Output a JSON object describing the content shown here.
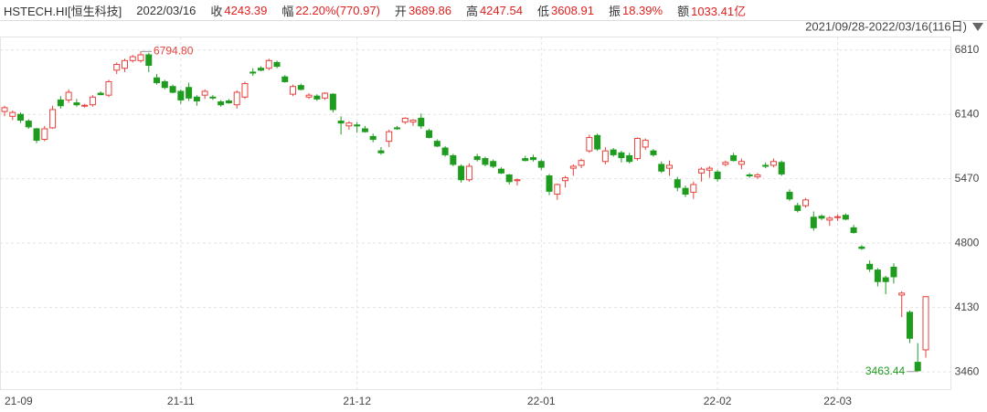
{
  "header": {
    "symbol": "HSTECH.HI[恒生科技]",
    "date": "2022/03/16",
    "fields": [
      {
        "label": "收",
        "value": "4243.39"
      },
      {
        "label": "幅",
        "value": "22.20%(770.97)"
      },
      {
        "label": "开",
        "value": "3689.86"
      },
      {
        "label": "高",
        "value": "4247.54"
      },
      {
        "label": "低",
        "value": "3608.91"
      },
      {
        "label": "振",
        "value": "18.39%"
      },
      {
        "label": "额",
        "value": "1033.41亿"
      }
    ],
    "range": "2021/09/28-2022/03/16(116日)"
  },
  "chart_data": {
    "type": "candlestick",
    "categories": [
      "21-09",
      null,
      null,
      null,
      null,
      null,
      null,
      null,
      null,
      null,
      null,
      null,
      null,
      null,
      null,
      null,
      null,
      null,
      null,
      null,
      null,
      null,
      "21-11",
      null,
      null,
      null,
      null,
      null,
      null,
      null,
      null,
      null,
      null,
      null,
      null,
      null,
      null,
      null,
      null,
      null,
      null,
      null,
      null,
      null,
      "21-12",
      null,
      null,
      null,
      null,
      null,
      null,
      null,
      null,
      null,
      null,
      null,
      null,
      null,
      null,
      null,
      null,
      null,
      null,
      null,
      null,
      null,
      null,
      "22-01",
      null,
      null,
      null,
      null,
      null,
      null,
      null,
      null,
      null,
      null,
      null,
      null,
      null,
      null,
      null,
      null,
      null,
      null,
      null,
      null,
      null,
      "22-02",
      null,
      null,
      null,
      null,
      null,
      null,
      null,
      null,
      null,
      null,
      null,
      null,
      null,
      null,
      "22-03",
      null,
      null,
      null,
      null,
      null,
      null,
      null,
      null,
      null,
      null,
      null
    ],
    "open": [
      6170,
      6120,
      6140,
      6070,
      5990,
      5880,
      6000,
      6290,
      6290,
      6260,
      6230,
      6240,
      6360,
      6340,
      6600,
      6620,
      6700,
      6700,
      6760,
      6520,
      6480,
      6430,
      6380,
      6420,
      6320,
      6340,
      6320,
      6270,
      6280,
      6240,
      6320,
      6580,
      6620,
      6620,
      6680,
      6530,
      6350,
      6440,
      6320,
      6330,
      6310,
      6350,
      6070,
      6020,
      6030,
      5990,
      5910,
      5760,
      5860,
      6000,
      6060,
      6060,
      6100,
      5970,
      5860,
      5790,
      5710,
      5600,
      5460,
      5700,
      5680,
      5650,
      5570,
      5510,
      5450,
      5680,
      5690,
      5650,
      5500,
      5310,
      5450,
      5580,
      5610,
      5760,
      5920,
      5650,
      5770,
      5740,
      5710,
      5680,
      5800,
      5760,
      5620,
      5580,
      5460,
      5370,
      5330,
      5530,
      5560,
      5540,
      5620,
      5710,
      5620,
      5510,
      5490,
      5610,
      5610,
      5640,
      5330,
      5190,
      5190,
      5070,
      5080,
      5040,
      5070,
      5090,
      4960,
      4760,
      4580,
      4520,
      4440,
      4550,
      4260,
      4080,
      3560,
      3689.86
    ],
    "high": [
      6230,
      6180,
      6160,
      6090,
      6000,
      6020,
      6230,
      6330,
      6400,
      6300,
      6250,
      6340,
      6380,
      6500,
      6680,
      6720,
      6760,
      6794.8,
      6780,
      6560,
      6500,
      6450,
      6400,
      6470,
      6340,
      6400,
      6340,
      6290,
      6300,
      6390,
      6480,
      6620,
      6640,
      6720,
      6700,
      6550,
      6450,
      6460,
      6360,
      6350,
      6370,
      6360,
      6120,
      6070,
      6060,
      6020,
      5940,
      5800,
      5980,
      6020,
      6110,
      6090,
      6150,
      5990,
      5880,
      5810,
      5730,
      5620,
      5630,
      5730,
      5700,
      5670,
      5590,
      5520,
      5470,
      5710,
      5720,
      5670,
      5520,
      5420,
      5500,
      5620,
      5680,
      5930,
      5940,
      5800,
      5790,
      5760,
      5740,
      5900,
      5890,
      5780,
      5650,
      5660,
      5490,
      5400,
      5440,
      5590,
      5600,
      5560,
      5660,
      5740,
      5680,
      5530,
      5530,
      5640,
      5680,
      5660,
      5360,
      5220,
      5270,
      5130,
      5100,
      5080,
      5100,
      5110,
      4990,
      4780,
      4620,
      4540,
      4460,
      4590,
      4300,
      4100,
      3760,
      4247.54
    ],
    "low": [
      6120,
      6080,
      6050,
      5990,
      5840,
      5860,
      5990,
      6200,
      6260,
      6220,
      6210,
      6220,
      6340,
      6320,
      6560,
      6580,
      6680,
      6680,
      6580,
      6450,
      6400,
      6360,
      6250,
      6280,
      6230,
      6300,
      6290,
      6220,
      6250,
      6200,
      6300,
      6540,
      6590,
      6600,
      6620,
      6470,
      6330,
      6390,
      6300,
      6280,
      6290,
      6160,
      5930,
      5980,
      5950,
      5950,
      5850,
      5720,
      5800,
      5980,
      6040,
      6020,
      5990,
      5890,
      5800,
      5700,
      5600,
      5430,
      5440,
      5650,
      5600,
      5580,
      5520,
      5410,
      5400,
      5650,
      5650,
      5560,
      5300,
      5250,
      5380,
      5500,
      5580,
      5740,
      5760,
      5620,
      5700,
      5640,
      5630,
      5660,
      5770,
      5700,
      5530,
      5500,
      5340,
      5280,
      5260,
      5440,
      5480,
      5440,
      5600,
      5650,
      5570,
      5480,
      5470,
      5580,
      5590,
      5500,
      5240,
      5120,
      5170,
      4930,
      5040,
      4980,
      5030,
      5040,
      4900,
      4730,
      4500,
      4350,
      4270,
      4380,
      4030,
      3760,
      3463.44,
      3608.91
    ],
    "close": [
      6210,
      6160,
      6080,
      6010,
      5870,
      5990,
      6190,
      6230,
      6370,
      6240,
      6235,
      6320,
      6345,
      6480,
      6660,
      6700,
      6740,
      6760,
      6650,
      6470,
      6420,
      6370,
      6290,
      6310,
      6280,
      6380,
      6310,
      6240,
      6260,
      6370,
      6460,
      6570,
      6600,
      6700,
      6640,
      6480,
      6430,
      6400,
      6340,
      6300,
      6360,
      6190,
      6050,
      6050,
      6020,
      5960,
      5880,
      5740,
      5960,
      5990,
      6100,
      6080,
      6020,
      5900,
      5810,
      5720,
      5620,
      5460,
      5600,
      5670,
      5620,
      5600,
      5530,
      5440,
      5460,
      5660,
      5670,
      5590,
      5340,
      5410,
      5480,
      5600,
      5660,
      5900,
      5780,
      5760,
      5720,
      5690,
      5650,
      5890,
      5870,
      5720,
      5550,
      5610,
      5380,
      5310,
      5410,
      5570,
      5580,
      5470,
      5640,
      5660,
      5650,
      5500,
      5510,
      5600,
      5650,
      5520,
      5260,
      5140,
      5250,
      4960,
      5060,
      5060,
      5075,
      5050,
      4910,
      4745,
      4530,
      4400,
      4400,
      4450,
      4280,
      3810,
      3472.42,
      4243.39
    ],
    "max_label": "6794.80",
    "min_label": "3463.44",
    "up_color": "#e8413c",
    "down_color": "#1f9c1f",
    "ylim": [
      3290,
      6950
    ],
    "yticks": [
      3460,
      4130,
      4800,
      5470,
      6140,
      6810
    ],
    "grid": true
  }
}
